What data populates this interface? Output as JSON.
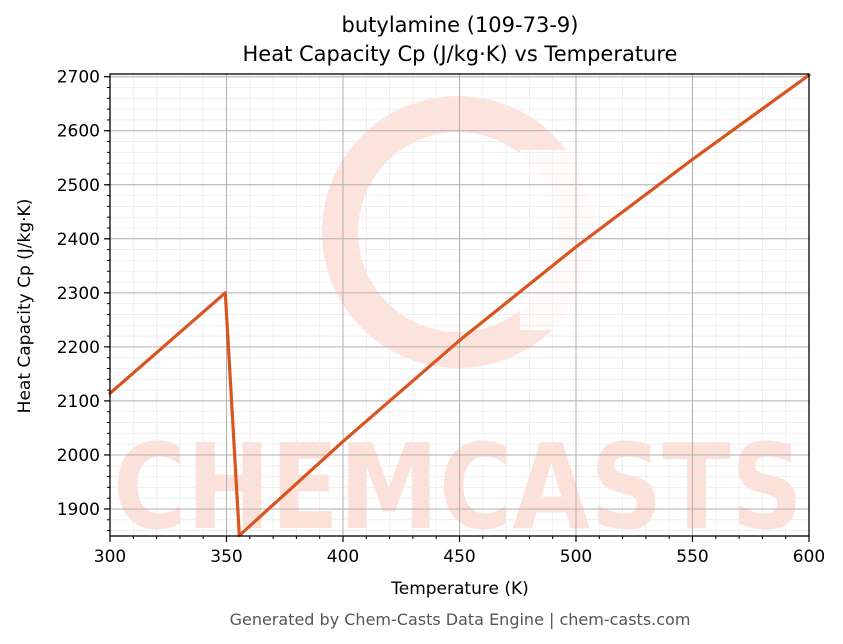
{
  "chart_data": {
    "type": "line",
    "title": "butylamine (109-73-9)",
    "subtitle": "Heat Capacity Cp (J/kg·K) vs Temperature",
    "xlabel": "Temperature (K)",
    "ylabel": "Heat Capacity Cp (J/kg·K)",
    "xlim": [
      300,
      600
    ],
    "ylim": [
      1850,
      2705
    ],
    "x_ticks": [
      300,
      350,
      400,
      450,
      500,
      550,
      600
    ],
    "y_ticks": [
      1900,
      2000,
      2100,
      2200,
      2300,
      2400,
      2500,
      2600,
      2700
    ],
    "grid": true,
    "legend": "none",
    "series": [
      {
        "color": "#d9541e",
        "x": [
          300,
          349.5,
          355.5,
          400,
          450,
          500,
          550,
          600
        ],
        "y": [
          2114,
          2300,
          1851,
          2025,
          2212,
          2385,
          2547,
          2703
        ]
      }
    ]
  },
  "footer": "Generated by Chem-Casts Data Engine | chem-casts.com",
  "watermark": {
    "text": "CHEMCASTS",
    "color": "#fde0d8"
  }
}
